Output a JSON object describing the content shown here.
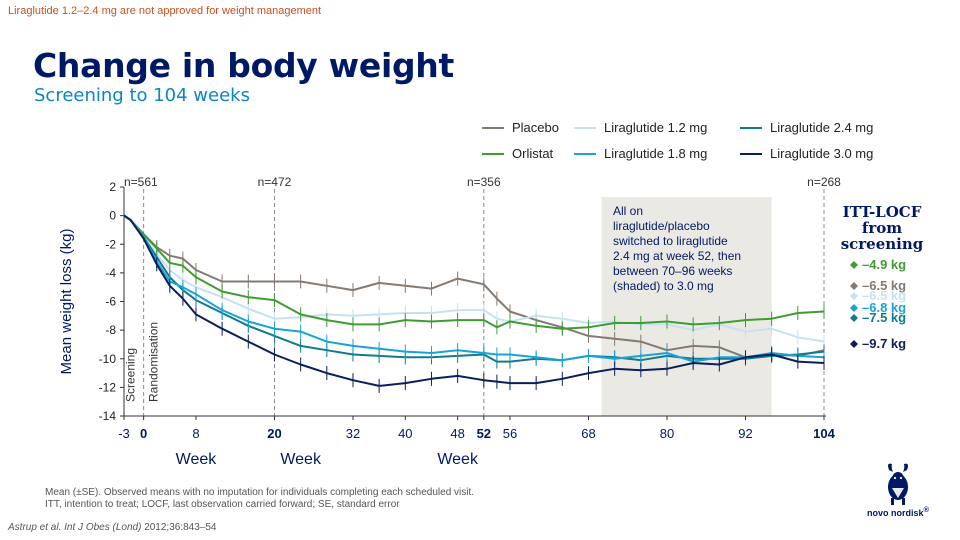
{
  "disclaimer": "Liraglutide 1.2–2.4 mg are not approved for weight management",
  "title": "Change in body weight",
  "subtitle": "Screening to 104 weeks",
  "footnote_line1": "Mean (±SE). Observed means with no imputation for individuals completing each scheduled visit.",
  "footnote_line2": "ITT, intention to treat; LOCF, last observation carried forward; SE, standard error",
  "citation_authors": "Astrup et al.",
  "citation_journal": "Int J Obes (Lond)",
  "citation_rest": "2012;36:843–54",
  "logo_text": "novo nordisk",
  "logo_reg": "®",
  "colors": {
    "placebo": "#857a72",
    "orlistat": "#3f9c35",
    "lira12": "#c6e2f1",
    "lira18": "#1aa3d6",
    "lira24": "#117a8b",
    "lira30": "#0b1f5c",
    "navy": "#001965"
  },
  "chart_data": {
    "type": "line",
    "ylabel": "Mean weight loss (kg)",
    "ylim": [
      -14,
      2
    ],
    "yticks": [
      2,
      0,
      -2,
      -4,
      -6,
      -8,
      -10,
      -12,
      -14
    ],
    "xlim": [
      -3,
      104
    ],
    "xticks": [
      {
        "value": -3,
        "label": "-3",
        "bold": false
      },
      {
        "value": 0,
        "label": "0",
        "bold": true
      },
      {
        "value": 8,
        "label": "8",
        "bold": false
      },
      {
        "value": 20,
        "label": "20",
        "bold": true
      },
      {
        "value": 32,
        "label": "32",
        "bold": false
      },
      {
        "value": 40,
        "label": "40",
        "bold": false
      },
      {
        "value": 48,
        "label": "48",
        "bold": false
      },
      {
        "value": 52,
        "label": "52",
        "bold": true
      },
      {
        "value": 56,
        "label": "56",
        "bold": false
      },
      {
        "value": 68,
        "label": "68",
        "bold": false
      },
      {
        "value": 80,
        "label": "80",
        "bold": false
      },
      {
        "value": 92,
        "label": "92",
        "bold": false
      },
      {
        "value": 104,
        "label": "104",
        "bold": true
      }
    ],
    "week_labels": [
      {
        "text": "Week",
        "x": 8
      },
      {
        "text": "Week",
        "x": 24
      },
      {
        "text": "Week",
        "x": 48
      }
    ],
    "vlines": [
      {
        "x": -3,
        "n_label": "n=561"
      },
      {
        "x": 0,
        "n_label": ""
      },
      {
        "x": 20,
        "n_label": "n=472"
      },
      {
        "x": 52,
        "n_label": "n=356"
      },
      {
        "x": 104,
        "n_label": "n=268"
      }
    ],
    "phase_labels": [
      {
        "text": "Screening",
        "x": -2
      },
      {
        "text": "Randomisation",
        "x": 1.5
      }
    ],
    "shaded": {
      "x0": 70,
      "x1": 96
    },
    "annotation": "All on liraglutide/placebo switched to liraglutide 2.4 mg at week 52, then between 70–96 weeks (shaded) to 3.0 mg",
    "legend": [
      {
        "name": "Placebo",
        "key": "placebo"
      },
      {
        "name": "Liraglutide 1.2 mg",
        "key": "lira12"
      },
      {
        "name": "Liraglutide 2.4 mg",
        "key": "lira24"
      },
      {
        "name": "Orlistat",
        "key": "orlistat"
      },
      {
        "name": "Liraglutide 1.8 mg",
        "key": "lira18"
      },
      {
        "name": "Liraglutide 3.0 mg",
        "key": "lira30"
      }
    ],
    "x": [
      -3,
      -2,
      0,
      2,
      4,
      6,
      8,
      12,
      16,
      20,
      24,
      28,
      32,
      36,
      40,
      44,
      48,
      52,
      54,
      56,
      60,
      64,
      68,
      72,
      76,
      80,
      84,
      88,
      92,
      96,
      100,
      104
    ],
    "series": [
      {
        "name": "Placebo",
        "key": "placebo",
        "values": [
          0,
          -0.3,
          -1.3,
          -2.2,
          -2.8,
          -3.0,
          -3.8,
          -4.6,
          -4.6,
          -4.6,
          -4.6,
          -4.9,
          -5.2,
          -4.7,
          -4.9,
          -5.1,
          -4.4,
          -4.8,
          -5.8,
          -6.7,
          -7.3,
          -7.8,
          -8.4,
          -8.6,
          -8.8,
          -9.4,
          -9.1,
          -9.2,
          -9.9,
          -9.7,
          -9.8,
          -9.4
        ]
      },
      {
        "name": "Liraglutide 1.2 mg",
        "key": "lira12",
        "values": [
          0,
          -0.3,
          -1.4,
          -2.7,
          -3.8,
          -4.5,
          -5.0,
          -5.7,
          -6.5,
          -7.2,
          -7.1,
          -6.9,
          -7.0,
          -6.9,
          -6.8,
          -6.8,
          -6.6,
          -6.6,
          -7.2,
          -7.4,
          -7.0,
          -7.2,
          -7.5,
          -7.4,
          -7.6,
          -7.6,
          -8.0,
          -7.6,
          -8.1,
          -7.9,
          -8.5,
          -8.8
        ]
      },
      {
        "name": "Liraglutide 2.4 mg",
        "key": "lira24",
        "values": [
          0,
          -0.3,
          -1.5,
          -2.9,
          -4.3,
          -5.2,
          -5.9,
          -6.8,
          -7.7,
          -8.4,
          -9.1,
          -9.4,
          -9.7,
          -9.8,
          -9.9,
          -9.9,
          -9.8,
          -9.7,
          -10.2,
          -10.2,
          -10.0,
          -10.1,
          -9.8,
          -9.9,
          -10.1,
          -9.8,
          -10.0,
          -10.0,
          -10.0,
          -9.8,
          -9.7,
          -9.5
        ]
      },
      {
        "name": "Orlistat",
        "key": "orlistat",
        "values": [
          0,
          -0.3,
          -1.3,
          -2.3,
          -3.3,
          -3.5,
          -4.3,
          -5.3,
          -5.7,
          -5.9,
          -6.9,
          -7.3,
          -7.6,
          -7.6,
          -7.3,
          -7.4,
          -7.3,
          -7.3,
          -7.8,
          -7.4,
          -7.7,
          -7.9,
          -7.8,
          -7.5,
          -7.5,
          -7.4,
          -7.6,
          -7.5,
          -7.3,
          -7.2,
          -6.8,
          -6.7
        ]
      },
      {
        "name": "Liraglutide 1.8 mg",
        "key": "lira18",
        "values": [
          0,
          -0.3,
          -1.5,
          -3.2,
          -4.6,
          -5.0,
          -5.5,
          -6.6,
          -7.4,
          -7.9,
          -8.1,
          -8.8,
          -9.1,
          -9.3,
          -9.5,
          -9.6,
          -9.4,
          -9.6,
          -9.7,
          -9.7,
          -9.9,
          -10.1,
          -9.8,
          -10.0,
          -9.8,
          -9.6,
          -10.2,
          -9.9,
          -9.9,
          -9.6,
          -9.8,
          -9.9
        ]
      },
      {
        "name": "Liraglutide 3.0 mg",
        "key": "lira30",
        "values": [
          0,
          -0.3,
          -1.6,
          -3.4,
          -4.9,
          -5.8,
          -6.9,
          -7.9,
          -8.8,
          -9.7,
          -10.4,
          -11.0,
          -11.5,
          -11.9,
          -11.7,
          -11.4,
          -11.2,
          -11.5,
          -11.6,
          -11.7,
          -11.7,
          -11.4,
          -11.0,
          -10.7,
          -10.8,
          -10.7,
          -10.3,
          -10.4,
          -9.9,
          -9.7,
          -10.2,
          -10.3
        ]
      }
    ],
    "side_panel": {
      "heading_lines": [
        "ITT-LOCF",
        "from",
        "screening"
      ],
      "items": [
        {
          "value": "–4.9 kg",
          "key": "orlistat"
        },
        {
          "value": "–6.5 kg",
          "key": "placebo"
        },
        {
          "value": "–6.5 kg",
          "key": "lira12"
        },
        {
          "value": "–6.8 kg",
          "key": "lira18"
        },
        {
          "value": "–7.5 kg",
          "key": "lira24"
        },
        {
          "value": "–9.7 kg",
          "key": "lira30"
        }
      ]
    }
  }
}
